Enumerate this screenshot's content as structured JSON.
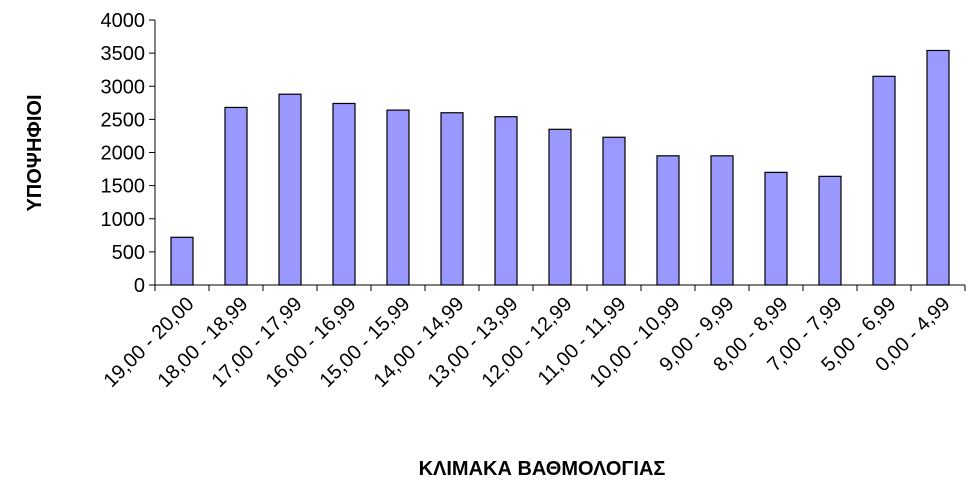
{
  "chart_data": {
    "type": "bar",
    "title": "",
    "xlabel": "ΚΛΙΜΑΚΑ ΒΑΘΜΟΛΟΓΙΑΣ",
    "ylabel": "ΥΠΟΨΗΦΙΟΙ",
    "categories": [
      "19,00 - 20,00",
      "18,00 - 18,99",
      "17,00 - 17,99",
      "16,00 - 16,99",
      "15,00 - 15,99",
      "14,00 - 14,99",
      "13,00 - 13,99",
      "12,00 - 12,99",
      "11,00 - 11,99",
      "10,00 - 10,99",
      "9,00 - 9,99",
      "8,00 - 8,99",
      "7,00 - 7,99",
      "5,00 - 6,99",
      "0,00 - 4,99"
    ],
    "values": [
      720,
      2680,
      2880,
      2740,
      2640,
      2600,
      2540,
      2350,
      2230,
      1950,
      1950,
      1700,
      1640,
      3150,
      3540
    ],
    "ylim": [
      0,
      4000
    ],
    "yticks": [
      "0",
      "500",
      "1000",
      "1500",
      "2000",
      "2500",
      "3000",
      "3500",
      "4000"
    ],
    "grid": false,
    "legend": "none",
    "bar_color": "#9999ff",
    "bar_edge_color": "#000000"
  }
}
